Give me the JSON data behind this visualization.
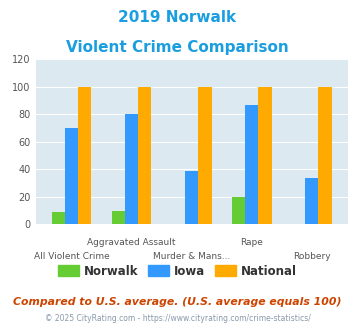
{
  "title_line1": "2019 Norwalk",
  "title_line2": "Violent Crime Comparison",
  "categories": [
    "All Violent Crime",
    "Aggravated Assault",
    "Murder & Mans...",
    "Rape",
    "Robbery"
  ],
  "norwalk": [
    9,
    10,
    0,
    20,
    0
  ],
  "iowa": [
    70,
    80,
    39,
    87,
    34
  ],
  "national": [
    100,
    100,
    100,
    100,
    100
  ],
  "norwalk_color": "#66cc33",
  "iowa_color": "#3399ff",
  "national_color": "#ffaa00",
  "bg_color": "#dce9f0",
  "ylim": [
    0,
    120
  ],
  "yticks": [
    0,
    20,
    40,
    60,
    80,
    100,
    120
  ],
  "xlabel_top": [
    "",
    "Aggravated Assault",
    "",
    "Rape",
    ""
  ],
  "xlabel_bottom": [
    "All Violent Crime",
    "",
    "Murder & Mans...",
    "",
    "Robbery"
  ],
  "footnote": "Compared to U.S. average. (U.S. average equals 100)",
  "copyright": "© 2025 CityRating.com - https://www.cityrating.com/crime-statistics/",
  "title_color": "#1a9ee0",
  "footnote_color": "#cc4400",
  "copyright_color": "#8899aa"
}
